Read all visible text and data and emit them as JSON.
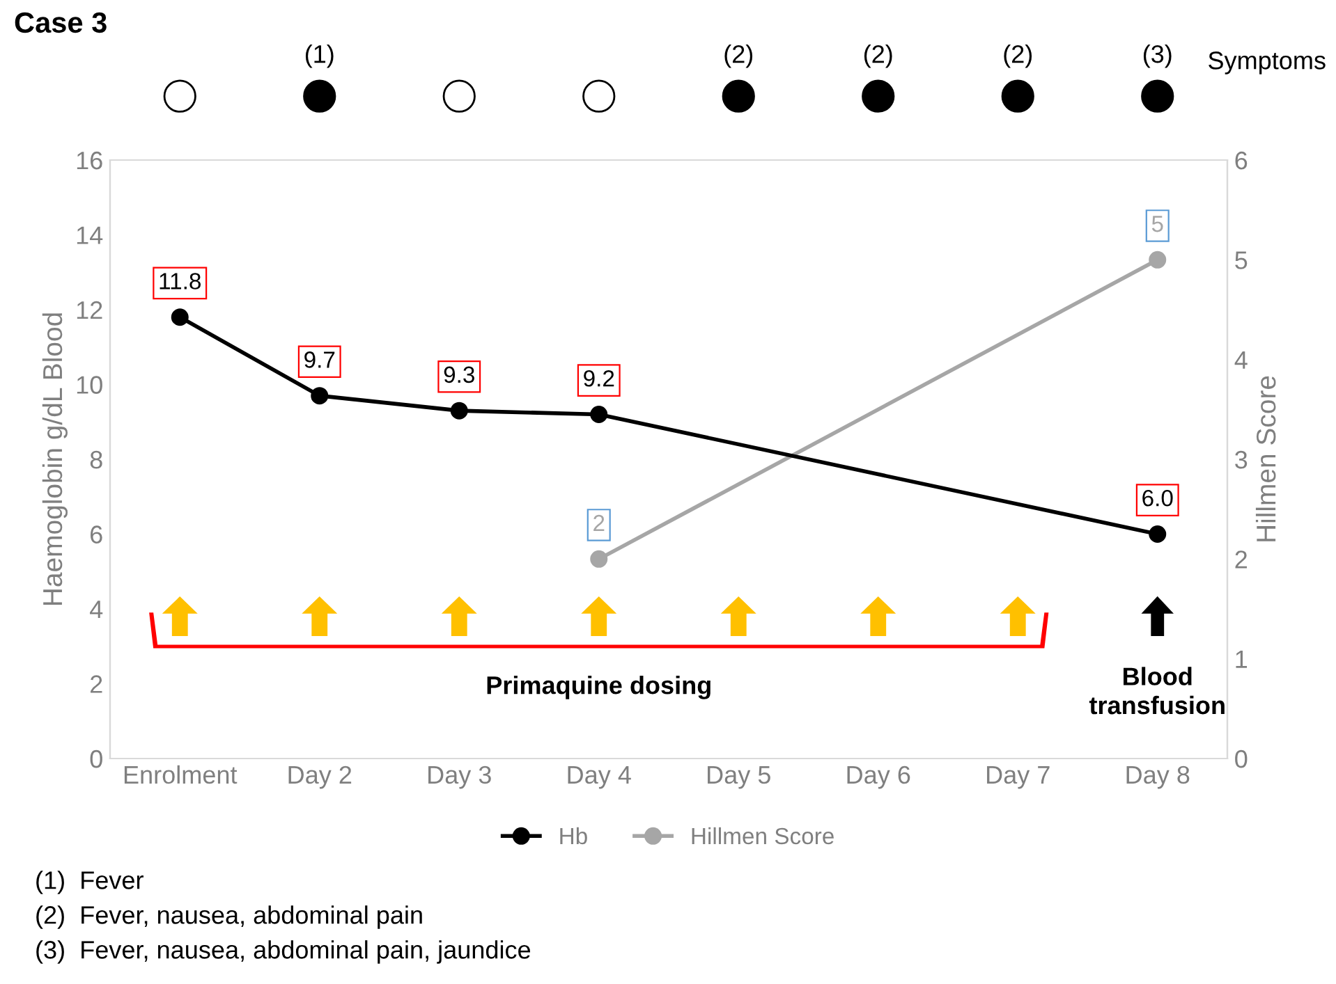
{
  "chart_data": [
    {
      "type": "other",
      "categories": [
        null,
        null,
        null,
        null,
        null,
        null,
        null,
        null
      ],
      "value_labels": [
        null,
        "(1)",
        null,
        null,
        "(2)",
        "(2)",
        "(2)",
        "(3)"
      ],
      "annotations": [
        "Symptoms"
      ]
    },
    {
      "type": "line",
      "title": "Case 3",
      "categories": [
        "Enrolment",
        "Day 2",
        "Day 3",
        "Day 4",
        "Day 5",
        "Day 6",
        "Day 7",
        "Day 8"
      ],
      "series": [
        {
          "name": "Hb",
          "color": "#000000",
          "values": [
            11.8,
            9.7,
            9.3,
            9.2,
            null,
            null,
            null,
            6.0
          ],
          "value_labels": [
            "11.8",
            "9.7",
            "9.3",
            "9.2",
            null,
            null,
            null,
            "6.0"
          ]
        },
        {
          "name": "Hillmen Score",
          "color": "#a6a6a6",
          "axis": "y2",
          "values": [
            null,
            null,
            null,
            2,
            null,
            null,
            null,
            5
          ],
          "value_labels": [
            null,
            null,
            null,
            "2",
            null,
            null,
            null,
            "5"
          ]
        }
      ],
      "ylabel": "Haemoglobin g/dL Blood",
      "y2label": "Hillmen Score",
      "ylim": [
        0,
        16
      ],
      "yticks": [
        0,
        2,
        4,
        6,
        8,
        10,
        12,
        14,
        16
      ],
      "y2lim": [
        0,
        6
      ],
      "y2ticks": [
        0,
        1,
        2,
        3,
        4,
        5,
        6
      ],
      "marker": "circle",
      "line_style": "solid",
      "grid": false,
      "legend": "bottom",
      "annotations": [
        "Primaquine dosing",
        "Blood transfusion",
        "(1)  Fever",
        "(2)  Fever, nausea, abdominal pain",
        "(3)  Fever, nausea, abdominal pain, jaundice"
      ]
    }
  ]
}
